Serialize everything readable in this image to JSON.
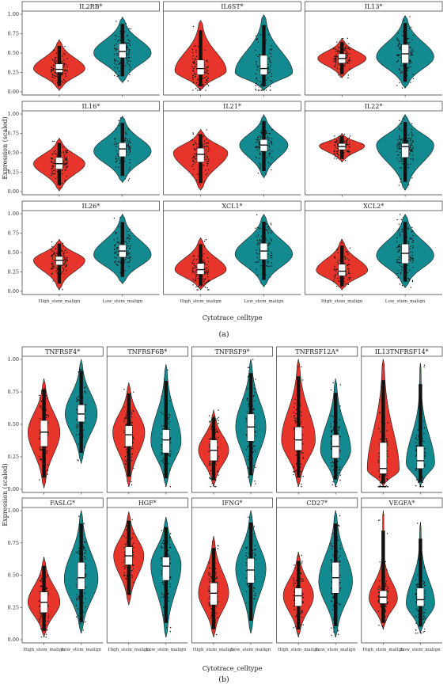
{
  "colors": {
    "high": "#e8352b",
    "low": "#138a8f"
  },
  "chart_data": [
    {
      "type": "violin",
      "panel_label": "(a)",
      "xlabel": "Cytotrace_celltype",
      "ylabel": "Expression (scaled)",
      "ylim": [
        0,
        1
      ],
      "yticks": [
        "0.00",
        "0.25",
        "0.50",
        "0.75",
        "1.00"
      ],
      "categories": [
        "High_stem_malign",
        "Low_stem_malign"
      ],
      "facets": [
        {
          "title": "IL2RB*",
          "groups": [
            {
              "min": 0.02,
              "q1": 0.25,
              "median": 0.29,
              "q3": 0.36,
              "max": 0.67,
              "mode": 0.3,
              "width": 0.85
            },
            {
              "min": 0.12,
              "q1": 0.44,
              "median": 0.52,
              "q3": 0.62,
              "max": 0.96,
              "mode": 0.5,
              "width": 0.95
            }
          ]
        },
        {
          "title": "IL6ST*",
          "groups": [
            {
              "min": 0.02,
              "q1": 0.22,
              "median": 0.3,
              "q3": 0.41,
              "max": 0.92,
              "mode": 0.27,
              "width": 0.85
            },
            {
              "min": 0.02,
              "q1": 0.22,
              "median": 0.3,
              "q3": 0.47,
              "max": 0.99,
              "mode": 0.25,
              "width": 0.95
            }
          ]
        },
        {
          "title": "IL13*",
          "groups": [
            {
              "min": 0.18,
              "q1": 0.37,
              "median": 0.43,
              "q3": 0.49,
              "max": 0.69,
              "mode": 0.43,
              "width": 0.8
            },
            {
              "min": 0.05,
              "q1": 0.37,
              "median": 0.49,
              "q3": 0.61,
              "max": 0.98,
              "mode": 0.45,
              "width": 0.95
            }
          ]
        },
        {
          "title": "IL16*",
          "groups": [
            {
              "min": 0.01,
              "q1": 0.29,
              "median": 0.36,
              "q3": 0.44,
              "max": 0.69,
              "mode": 0.36,
              "width": 0.85
            },
            {
              "min": 0.12,
              "q1": 0.45,
              "median": 0.55,
              "q3": 0.63,
              "max": 0.97,
              "mode": 0.52,
              "width": 0.95
            }
          ]
        },
        {
          "title": "IL21*",
          "groups": [
            {
              "min": 0.02,
              "q1": 0.38,
              "median": 0.48,
              "q3": 0.56,
              "max": 0.8,
              "mode": 0.5,
              "width": 0.9
            },
            {
              "min": 0.18,
              "q1": 0.52,
              "median": 0.6,
              "q3": 0.67,
              "max": 0.99,
              "mode": 0.6,
              "width": 0.8
            }
          ]
        },
        {
          "title": "IL22*",
          "groups": [
            {
              "min": 0.38,
              "q1": 0.54,
              "median": 0.58,
              "q3": 0.62,
              "max": 0.75,
              "mode": 0.59,
              "width": 0.75
            },
            {
              "min": 0.02,
              "q1": 0.44,
              "median": 0.58,
              "q3": 0.62,
              "max": 0.99,
              "mode": 0.6,
              "width": 0.95
            }
          ]
        },
        {
          "title": "IL26*",
          "groups": [
            {
              "min": 0.02,
              "q1": 0.34,
              "median": 0.4,
              "q3": 0.45,
              "max": 0.67,
              "mode": 0.4,
              "width": 0.85
            },
            {
              "min": 0.1,
              "q1": 0.44,
              "median": 0.52,
              "q3": 0.6,
              "max": 0.99,
              "mode": 0.47,
              "width": 0.95
            }
          ]
        },
        {
          "title": "XCL1*",
          "groups": [
            {
              "min": 0.02,
              "q1": 0.22,
              "median": 0.28,
              "q3": 0.36,
              "max": 0.69,
              "mode": 0.28,
              "width": 0.85
            },
            {
              "min": 0.06,
              "q1": 0.41,
              "median": 0.52,
              "q3": 0.62,
              "max": 0.99,
              "mode": 0.48,
              "width": 0.95
            }
          ]
        },
        {
          "title": "XCL2*",
          "groups": [
            {
              "min": 0.02,
              "q1": 0.2,
              "median": 0.26,
              "q3": 0.35,
              "max": 0.67,
              "mode": 0.27,
              "width": 0.85
            },
            {
              "min": 0.05,
              "q1": 0.36,
              "median": 0.49,
              "q3": 0.61,
              "max": 0.99,
              "mode": 0.46,
              "width": 0.95
            }
          ]
        }
      ]
    },
    {
      "type": "violin",
      "panel_label": "(b)",
      "xlabel": "Cytotrace_celltype",
      "ylabel": "Expression (scaled)",
      "ylim": [
        0,
        1
      ],
      "yticks": [
        "0.00",
        "0.25",
        "0.50",
        "0.75",
        "1.00"
      ],
      "categories": [
        "High_stem_malign",
        "Low_stem_malign"
      ],
      "facets": [
        {
          "title": "TNFRSF4*",
          "groups": [
            {
              "min": 0.01,
              "q1": 0.33,
              "median": 0.44,
              "q3": 0.53,
              "max": 0.85,
              "mode": 0.44,
              "width": 0.9
            },
            {
              "min": 0.2,
              "q1": 0.52,
              "median": 0.58,
              "q3": 0.65,
              "max": 1.0,
              "mode": 0.58,
              "width": 0.9
            }
          ]
        },
        {
          "title": "TNFRSF6B*",
          "groups": [
            {
              "min": 0.02,
              "q1": 0.33,
              "median": 0.42,
              "q3": 0.49,
              "max": 0.82,
              "mode": 0.44,
              "width": 0.9
            },
            {
              "min": 0.02,
              "q1": 0.28,
              "median": 0.38,
              "q3": 0.46,
              "max": 0.96,
              "mode": 0.37,
              "width": 0.85
            }
          ]
        },
        {
          "title": "TNFRSF9*",
          "groups": [
            {
              "min": 0.02,
              "q1": 0.22,
              "median": 0.3,
              "q3": 0.38,
              "max": 0.61,
              "mode": 0.3,
              "width": 0.85
            },
            {
              "min": 0.02,
              "q1": 0.37,
              "median": 0.48,
              "q3": 0.58,
              "max": 1.0,
              "mode": 0.48,
              "width": 0.85
            }
          ]
        },
        {
          "title": "TNFRSF12A*",
          "groups": [
            {
              "min": 0.02,
              "q1": 0.3,
              "median": 0.38,
              "q3": 0.48,
              "max": 1.0,
              "mode": 0.38,
              "width": 0.95
            },
            {
              "min": 0.02,
              "q1": 0.24,
              "median": 0.33,
              "q3": 0.42,
              "max": 0.85,
              "mode": 0.3,
              "width": 0.85
            }
          ]
        },
        {
          "title": "IL13TNFRSF14*",
          "groups": [
            {
              "min": 0.02,
              "q1": 0.12,
              "median": 0.16,
              "q3": 0.36,
              "max": 1.0,
              "mode": 0.15,
              "width": 0.9
            },
            {
              "min": 0.02,
              "q1": 0.16,
              "median": 0.22,
              "q3": 0.33,
              "max": 0.97,
              "mode": 0.2,
              "width": 0.8
            }
          ]
        },
        {
          "title": "FASLG*",
          "groups": [
            {
              "min": 0.02,
              "q1": 0.21,
              "median": 0.29,
              "q3": 0.37,
              "max": 0.64,
              "mode": 0.29,
              "width": 0.9
            },
            {
              "min": 0.05,
              "q1": 0.39,
              "median": 0.48,
              "q3": 0.6,
              "max": 1.0,
              "mode": 0.47,
              "width": 0.95
            }
          ]
        },
        {
          "title": "HGF*",
          "groups": [
            {
              "min": 0.27,
              "q1": 0.58,
              "median": 0.65,
              "q3": 0.72,
              "max": 0.99,
              "mode": 0.65,
              "width": 0.85
            },
            {
              "min": 0.02,
              "q1": 0.46,
              "median": 0.57,
              "q3": 0.64,
              "max": 0.95,
              "mode": 0.58,
              "width": 0.85
            }
          ]
        },
        {
          "title": "IFNG*",
          "groups": [
            {
              "min": 0.02,
              "q1": 0.27,
              "median": 0.36,
              "q3": 0.44,
              "max": 0.8,
              "mode": 0.36,
              "width": 0.85
            },
            {
              "min": 0.05,
              "q1": 0.44,
              "median": 0.54,
              "q3": 0.63,
              "max": 1.0,
              "mode": 0.55,
              "width": 0.85
            }
          ]
        },
        {
          "title": "CD27*",
          "groups": [
            {
              "min": 0.02,
              "q1": 0.26,
              "median": 0.34,
              "q3": 0.4,
              "max": 0.68,
              "mode": 0.34,
              "width": 0.85
            },
            {
              "min": 0.02,
              "q1": 0.36,
              "median": 0.48,
              "q3": 0.6,
              "max": 1.0,
              "mode": 0.45,
              "width": 0.95
            }
          ]
        },
        {
          "title": "VEGFA*",
          "groups": [
            {
              "min": 0.08,
              "q1": 0.28,
              "median": 0.33,
              "q3": 0.38,
              "max": 1.0,
              "mode": 0.32,
              "width": 0.8
            },
            {
              "min": 0.05,
              "q1": 0.26,
              "median": 0.31,
              "q3": 0.4,
              "max": 0.91,
              "mode": 0.28,
              "width": 0.8
            }
          ]
        }
      ]
    }
  ]
}
